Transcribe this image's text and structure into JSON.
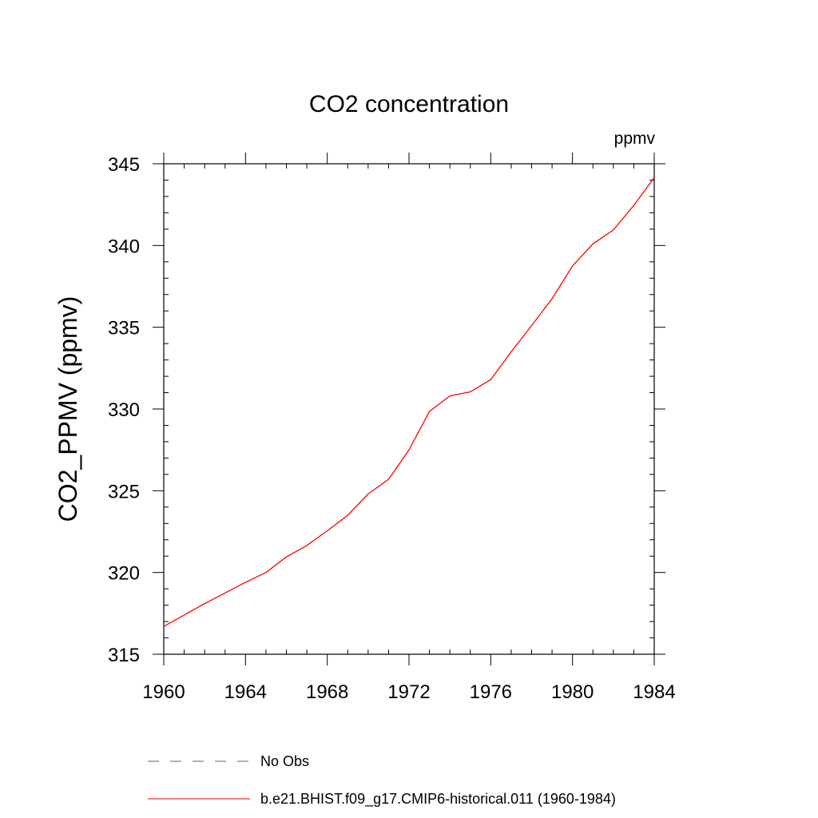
{
  "chart_data": {
    "type": "line",
    "title": "CO2 concentration",
    "units_label": "ppmv",
    "xlabel": "",
    "ylabel": "CO2_PPMV  (ppmv)",
    "xlim": [
      1960,
      1984
    ],
    "ylim": [
      315,
      345
    ],
    "x_ticks": [
      1960,
      1964,
      1968,
      1972,
      1976,
      1980,
      1984
    ],
    "y_ticks": [
      315,
      320,
      325,
      330,
      335,
      340,
      345
    ],
    "grid": false,
    "legend_position": "bottom",
    "series": [
      {
        "name": "b.e21.BHIST.f09_g17.CMIP6-historical.011 (1960-1984)",
        "color": "#ff0000",
        "dash": "solid",
        "x": [
          1960,
          1961,
          1962,
          1963,
          1964,
          1965,
          1966,
          1967,
          1968,
          1969,
          1970,
          1971,
          1972,
          1973,
          1974,
          1975,
          1976,
          1977,
          1978,
          1979,
          1980,
          1981,
          1982,
          1983,
          1984
        ],
        "y": [
          316.7,
          317.4,
          318.1,
          318.75,
          319.4,
          320.0,
          320.95,
          321.65,
          322.55,
          323.5,
          324.8,
          325.7,
          327.5,
          329.85,
          330.8,
          331.05,
          331.8,
          333.5,
          335.1,
          336.75,
          338.75,
          340.1,
          340.95,
          342.45,
          344.15
        ]
      },
      {
        "name": "No Obs",
        "color": "#5a5aa8",
        "dash": "dashed",
        "x": [],
        "y": []
      }
    ]
  }
}
